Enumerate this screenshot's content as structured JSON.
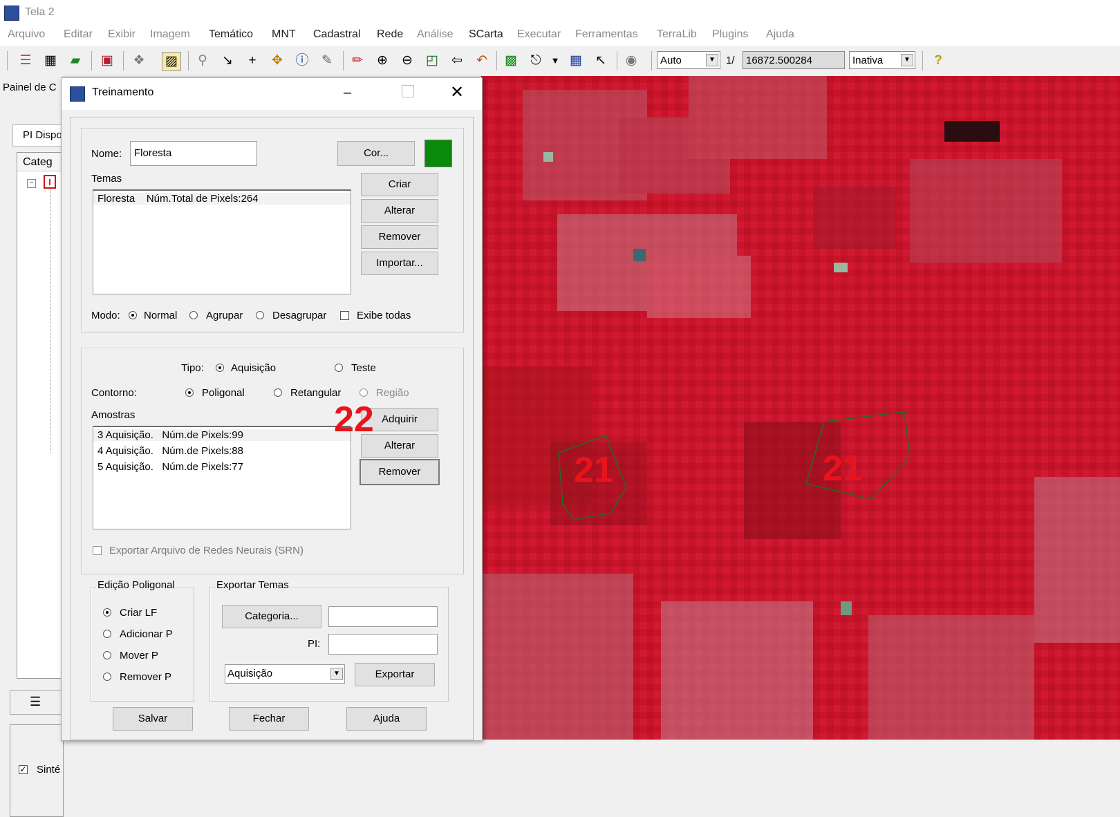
{
  "window": {
    "title": "Tela 2"
  },
  "menu": [
    "Arquivo",
    "Editar",
    "Exibir",
    "Imagem",
    "Temático",
    "MNT",
    "Cadastral",
    "Rede",
    "Análise",
    "SCarta",
    "Executar",
    "Ferramentas",
    "TerraLib",
    "Plugins",
    "Ajuda"
  ],
  "toolbar": {
    "scale_mode": "Auto",
    "scale_prefix": "1/",
    "scale_value": "16872.500284",
    "status": "Inativa",
    "help_icon": "question-icon"
  },
  "left_panel": {
    "title": "Painel de C",
    "tab": "PI Dispo",
    "category_header": "Categ",
    "checkbox_label": "Sinté"
  },
  "dialog": {
    "title": "Treinamento",
    "nome_label": "Nome:",
    "nome_value": "Floresta",
    "cor_button": "Cor...",
    "class_color": "#0a8a0a",
    "temas_label": "Temas",
    "temas": [
      "Floresta    Núm.Total de Pixels:264"
    ],
    "temas_buttons": {
      "criar": "Criar",
      "alterar": "Alterar",
      "remover": "Remover",
      "importar": "Importar..."
    },
    "modo": {
      "label": "Modo:",
      "normal": "Normal",
      "agrupar": "Agrupar",
      "desagrupar": "Desagrupar",
      "exibe_todas": "Exibe todas"
    },
    "tipo": {
      "label": "Tipo:",
      "aquisicao": "Aquisição",
      "teste": "Teste"
    },
    "contorno": {
      "label": "Contorno:",
      "poligonal": "Poligonal",
      "retangular": "Retangular",
      "regiao": "Região"
    },
    "amostras_label": "Amostras",
    "amostras": [
      "3 Aquisição.   Núm.de Pixels:99",
      "4 Aquisição.   Núm.de Pixels:88",
      "5 Aquisição.   Núm.de Pixels:77"
    ],
    "amostras_buttons": {
      "adquirir": "Adquirir",
      "alterar": "Alterar",
      "remover": "Remover"
    },
    "exportar_srn": "Exportar Arquivo de Redes Neurais (SRN)",
    "edicao": {
      "legend": "Edição Poligonal",
      "criar": "Criar LF",
      "adicionar": "Adicionar P",
      "mover": "Mover P",
      "remover": "Remover P"
    },
    "exportar_temas": {
      "legend": "Exportar Temas",
      "categoria_button": "Categoria...",
      "categoria_value": "",
      "pi_label": "PI:",
      "pi_value": "",
      "combo_value": "Aquisição",
      "exportar_button": "Exportar"
    },
    "footer": {
      "salvar": "Salvar",
      "fechar": "Fechar",
      "ajuda": "Ajuda"
    }
  },
  "annotations": {
    "dialog_marker": "22",
    "map_marker_left": "21",
    "map_marker_right": "21",
    "color": "#e8141c"
  },
  "map": {
    "base_color": "#c8142a",
    "polygon_color": "#1f6e1f"
  }
}
